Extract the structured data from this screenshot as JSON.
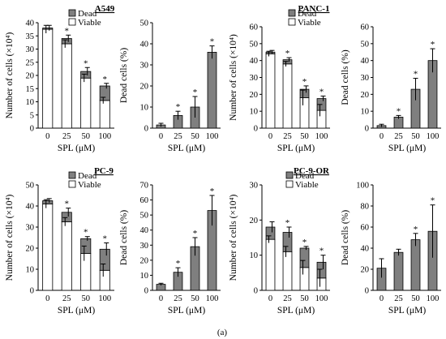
{
  "figure_label": "(a)",
  "xlabel": "SPL (μM)",
  "colors": {
    "dead": "#7f7f7f",
    "viable": "#ffffff",
    "stroke": "#000000"
  },
  "chart_data": [
    {
      "type": "stacked-bar",
      "title": "A549",
      "ylabel": "Number of cells (×10⁴)",
      "xlabel": "SPL (μM)",
      "categories": [
        "0",
        "25",
        "50",
        "100"
      ],
      "ylim": [
        0,
        40
      ],
      "yticks": [
        0,
        5,
        10,
        15,
        20,
        25,
        30,
        35,
        40
      ],
      "legend": [
        "Dead",
        "Viable"
      ],
      "series": [
        {
          "name": "Viable",
          "values": [
            37.5,
            32,
            19,
            10.5
          ],
          "errors": [
            1.5,
            1.5,
            1.5,
            1.2
          ]
        },
        {
          "name": "Dead",
          "values": [
            0.5,
            2,
            2.5,
            5.5
          ],
          "errors": [
            1,
            1.3,
            1.5,
            1
          ]
        }
      ],
      "significance": [
        "",
        "*",
        "*",
        "*"
      ]
    },
    {
      "type": "bar",
      "title": "",
      "ylabel": "Dead cells (%)",
      "xlabel": "SPL (μM)",
      "categories": [
        "0",
        "25",
        "50",
        "100"
      ],
      "ylim": [
        0,
        50
      ],
      "yticks": [
        0,
        10,
        20,
        30,
        40,
        50
      ],
      "values": [
        1.5,
        6,
        10,
        36
      ],
      "errors": [
        0.8,
        2,
        5,
        3
      ],
      "significance": [
        "",
        "*",
        "*",
        "*"
      ]
    },
    {
      "type": "stacked-bar",
      "title": "PANC-1",
      "ylabel": "Number of cells (×10⁴)",
      "xlabel": "SPL (μM)",
      "categories": [
        "0",
        "25",
        "50",
        "100"
      ],
      "ylim": [
        0,
        60
      ],
      "yticks": [
        0,
        10,
        20,
        30,
        40,
        50,
        60
      ],
      "legend": [
        "Dead",
        "Viable"
      ],
      "series": [
        {
          "name": "Viable",
          "values": [
            44,
            38,
            18,
            10.5
          ],
          "errors": [
            1.5,
            1.5,
            4.5,
            3.5
          ]
        },
        {
          "name": "Dead",
          "values": [
            1,
            2.5,
            5,
            7
          ],
          "errors": [
            1,
            1.2,
            2,
            1.5
          ]
        }
      ],
      "significance": [
        "",
        "*",
        "*",
        "*"
      ]
    },
    {
      "type": "bar",
      "title": "",
      "ylabel": "Dead cells (%)",
      "xlabel": "SPL (μM)",
      "categories": [
        "0",
        "25",
        "50",
        "100"
      ],
      "ylim": [
        0,
        60
      ],
      "yticks": [
        0,
        10,
        20,
        30,
        40,
        50,
        60
      ],
      "values": [
        1.5,
        6.5,
        23,
        40
      ],
      "errors": [
        0.8,
        1,
        6.5,
        7
      ],
      "significance": [
        "",
        "*",
        "*",
        "*"
      ]
    },
    {
      "type": "stacked-bar",
      "title": "PC-9",
      "ylabel": "Number of cells (×10⁴)",
      "xlabel": "SPL (μM)",
      "categories": [
        "0",
        "25",
        "50",
        "100"
      ],
      "ylim": [
        0,
        50
      ],
      "yticks": [
        0,
        10,
        20,
        30,
        40,
        50
      ],
      "legend": [
        "Dead",
        "Viable"
      ],
      "series": [
        {
          "name": "Viable",
          "values": [
            41,
            32.5,
            17.5,
            9.5
          ],
          "errors": [
            2,
            2,
            3.5,
            3
          ]
        },
        {
          "name": "Dead",
          "values": [
            1.5,
            4.5,
            7,
            10
          ],
          "errors": [
            1,
            2,
            1,
            3
          ]
        }
      ],
      "significance": [
        "",
        "*",
        "*",
        "*"
      ]
    },
    {
      "type": "bar",
      "title": "",
      "ylabel": "Dead cells (%)",
      "xlabel": "SPL (μM)",
      "categories": [
        "0",
        "25",
        "50",
        "100"
      ],
      "ylim": [
        0,
        70
      ],
      "yticks": [
        0,
        10,
        20,
        30,
        40,
        50,
        60,
        70
      ],
      "values": [
        4,
        12,
        29,
        53
      ],
      "errors": [
        0.7,
        3,
        6,
        10
      ],
      "significance": [
        "",
        "*",
        "*",
        "*"
      ]
    },
    {
      "type": "stacked-bar",
      "title": "PC-9-OR",
      "ylabel": "Number of cells (×10⁴)",
      "xlabel": "SPL (μM)",
      "categories": [
        "0",
        "25",
        "50",
        "100"
      ],
      "ylim": [
        0,
        30
      ],
      "yticks": [
        0,
        10,
        20,
        30
      ],
      "legend": [
        "Dead",
        "Viable"
      ],
      "series": [
        {
          "name": "Viable",
          "values": [
            14.5,
            11,
            6.5,
            3.5
          ],
          "errors": [
            1,
            1.5,
            2,
            2.5
          ]
        },
        {
          "name": "Dead",
          "values": [
            3.5,
            5.5,
            5.5,
            4.5
          ],
          "errors": [
            1.5,
            1.5,
            0.5,
            2
          ]
        }
      ],
      "significance": [
        "",
        "*",
        "*",
        "*"
      ]
    },
    {
      "type": "bar",
      "title": "",
      "ylabel": "Dead cells (%)",
      "xlabel": "SPL (μM)",
      "categories": [
        "0",
        "25",
        "50",
        "100"
      ],
      "ylim": [
        0,
        100
      ],
      "yticks": [
        0,
        20,
        40,
        60,
        80,
        100
      ],
      "values": [
        21,
        36,
        48,
        56
      ],
      "errors": [
        9,
        3,
        6,
        25
      ],
      "significance": [
        "",
        "",
        "*",
        "*"
      ]
    }
  ]
}
